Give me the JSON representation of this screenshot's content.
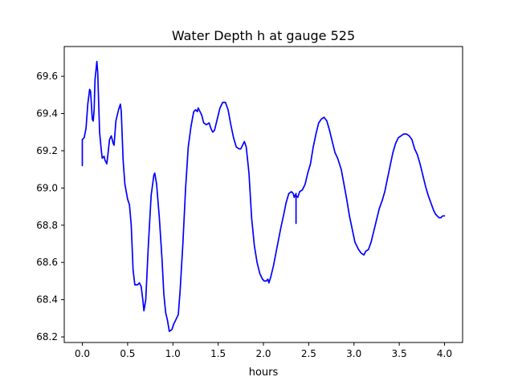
{
  "chart_data": {
    "type": "line",
    "title": "Water Depth h at gauge 525",
    "xlabel": "hours",
    "ylabel": "",
    "xlim": [
      -0.2,
      4.2
    ],
    "ylim": [
      68.17,
      69.76
    ],
    "xticks": [
      0.0,
      0.5,
      1.0,
      1.5,
      2.0,
      2.5,
      3.0,
      3.5,
      4.0
    ],
    "xtick_labels": [
      "0.0",
      "0.5",
      "1.0",
      "1.5",
      "2.0",
      "2.5",
      "3.0",
      "3.5",
      "4.0"
    ],
    "yticks": [
      68.2,
      68.4,
      68.6,
      68.8,
      69.0,
      69.2,
      69.4,
      69.6
    ],
    "ytick_labels": [
      "68.2",
      "68.4",
      "68.6",
      "68.8",
      "69.0",
      "69.2",
      "69.4",
      "69.6"
    ],
    "grid": false,
    "series": [
      {
        "color": "#0000ff",
        "points": [
          [
            0.0,
            69.12
          ],
          [
            0.0,
            69.26
          ],
          [
            0.02,
            69.27
          ],
          [
            0.04,
            69.32
          ],
          [
            0.06,
            69.45
          ],
          [
            0.08,
            69.53
          ],
          [
            0.09,
            69.52
          ],
          [
            0.1,
            69.45
          ],
          [
            0.11,
            69.37
          ],
          [
            0.12,
            69.36
          ],
          [
            0.13,
            69.42
          ],
          [
            0.14,
            69.58
          ],
          [
            0.16,
            69.68
          ],
          [
            0.17,
            69.62
          ],
          [
            0.19,
            69.3
          ],
          [
            0.21,
            69.2
          ],
          [
            0.22,
            69.16
          ],
          [
            0.24,
            69.17
          ],
          [
            0.25,
            69.15
          ],
          [
            0.27,
            69.13
          ],
          [
            0.28,
            69.17
          ],
          [
            0.3,
            69.26
          ],
          [
            0.32,
            69.28
          ],
          [
            0.34,
            69.24
          ],
          [
            0.35,
            69.23
          ],
          [
            0.37,
            69.36
          ],
          [
            0.4,
            69.42
          ],
          [
            0.42,
            69.45
          ],
          [
            0.43,
            69.41
          ],
          [
            0.45,
            69.15
          ],
          [
            0.47,
            69.02
          ],
          [
            0.5,
            68.94
          ],
          [
            0.52,
            68.91
          ],
          [
            0.54,
            68.8
          ],
          [
            0.56,
            68.56
          ],
          [
            0.58,
            68.48
          ],
          [
            0.61,
            68.48
          ],
          [
            0.63,
            68.49
          ],
          [
            0.65,
            68.47
          ],
          [
            0.67,
            68.39
          ],
          [
            0.68,
            68.34
          ],
          [
            0.7,
            68.4
          ],
          [
            0.73,
            68.7
          ],
          [
            0.76,
            68.96
          ],
          [
            0.79,
            69.07
          ],
          [
            0.8,
            69.08
          ],
          [
            0.82,
            69.02
          ],
          [
            0.85,
            68.84
          ],
          [
            0.88,
            68.62
          ],
          [
            0.9,
            68.43
          ],
          [
            0.92,
            68.33
          ],
          [
            0.94,
            68.29
          ],
          [
            0.96,
            68.23
          ],
          [
            0.99,
            68.24
          ],
          [
            1.01,
            68.27
          ],
          [
            1.03,
            68.29
          ],
          [
            1.06,
            68.32
          ],
          [
            1.08,
            68.45
          ],
          [
            1.11,
            68.7
          ],
          [
            1.14,
            69.0
          ],
          [
            1.17,
            69.22
          ],
          [
            1.2,
            69.33
          ],
          [
            1.23,
            69.41
          ],
          [
            1.25,
            69.42
          ],
          [
            1.27,
            69.41
          ],
          [
            1.28,
            69.43
          ],
          [
            1.3,
            69.41
          ],
          [
            1.32,
            69.39
          ],
          [
            1.34,
            69.35
          ],
          [
            1.37,
            69.34
          ],
          [
            1.4,
            69.35
          ],
          [
            1.42,
            69.32
          ],
          [
            1.44,
            69.3
          ],
          [
            1.46,
            69.31
          ],
          [
            1.49,
            69.37
          ],
          [
            1.52,
            69.43
          ],
          [
            1.55,
            69.46
          ],
          [
            1.58,
            69.46
          ],
          [
            1.61,
            69.42
          ],
          [
            1.64,
            69.34
          ],
          [
            1.67,
            69.27
          ],
          [
            1.7,
            69.22
          ],
          [
            1.73,
            69.21
          ],
          [
            1.75,
            69.21
          ],
          [
            1.77,
            69.23
          ],
          [
            1.79,
            69.25
          ],
          [
            1.81,
            69.22
          ],
          [
            1.84,
            69.08
          ],
          [
            1.87,
            68.84
          ],
          [
            1.9,
            68.69
          ],
          [
            1.93,
            68.6
          ],
          [
            1.96,
            68.54
          ],
          [
            1.99,
            68.51
          ],
          [
            2.01,
            68.5
          ],
          [
            2.03,
            68.5
          ],
          [
            2.05,
            68.51
          ],
          [
            2.06,
            68.49
          ],
          [
            2.08,
            68.52
          ],
          [
            2.11,
            68.58
          ],
          [
            2.15,
            68.68
          ],
          [
            2.19,
            68.78
          ],
          [
            2.23,
            68.87
          ],
          [
            2.25,
            68.92
          ],
          [
            2.28,
            68.97
          ],
          [
            2.31,
            68.98
          ],
          [
            2.33,
            68.97
          ],
          [
            2.34,
            68.95
          ],
          [
            2.35,
            68.96
          ],
          [
            2.36,
            68.97
          ],
          [
            2.36,
            68.81
          ],
          [
            2.36,
            68.96
          ],
          [
            2.38,
            68.95
          ],
          [
            2.4,
            68.98
          ],
          [
            2.43,
            68.99
          ],
          [
            2.46,
            69.02
          ],
          [
            2.49,
            69.08
          ],
          [
            2.52,
            69.13
          ],
          [
            2.55,
            69.22
          ],
          [
            2.58,
            69.29
          ],
          [
            2.61,
            69.35
          ],
          [
            2.64,
            69.37
          ],
          [
            2.67,
            69.38
          ],
          [
            2.7,
            69.36
          ],
          [
            2.73,
            69.31
          ],
          [
            2.76,
            69.25
          ],
          [
            2.79,
            69.19
          ],
          [
            2.82,
            69.16
          ],
          [
            2.86,
            69.1
          ],
          [
            2.89,
            69.02
          ],
          [
            2.92,
            68.94
          ],
          [
            2.95,
            68.85
          ],
          [
            2.98,
            68.78
          ],
          [
            3.01,
            68.71
          ],
          [
            3.05,
            68.67
          ],
          [
            3.08,
            68.65
          ],
          [
            3.11,
            68.64
          ],
          [
            3.13,
            68.66
          ],
          [
            3.16,
            68.67
          ],
          [
            3.19,
            68.71
          ],
          [
            3.22,
            68.77
          ],
          [
            3.25,
            68.83
          ],
          [
            3.28,
            68.89
          ],
          [
            3.31,
            68.93
          ],
          [
            3.34,
            68.98
          ],
          [
            3.37,
            69.05
          ],
          [
            3.4,
            69.12
          ],
          [
            3.43,
            69.19
          ],
          [
            3.46,
            69.24
          ],
          [
            3.49,
            69.27
          ],
          [
            3.52,
            69.28
          ],
          [
            3.55,
            69.29
          ],
          [
            3.58,
            69.29
          ],
          [
            3.61,
            69.28
          ],
          [
            3.64,
            69.26
          ],
          [
            3.67,
            69.21
          ],
          [
            3.7,
            69.18
          ],
          [
            3.73,
            69.13
          ],
          [
            3.76,
            69.07
          ],
          [
            3.79,
            69.01
          ],
          [
            3.82,
            68.96
          ],
          [
            3.85,
            68.92
          ],
          [
            3.88,
            68.88
          ],
          [
            3.9,
            68.86
          ],
          [
            3.92,
            68.85
          ],
          [
            3.94,
            68.84
          ],
          [
            3.96,
            68.84
          ],
          [
            3.98,
            68.85
          ],
          [
            4.0,
            68.85
          ]
        ]
      }
    ]
  }
}
